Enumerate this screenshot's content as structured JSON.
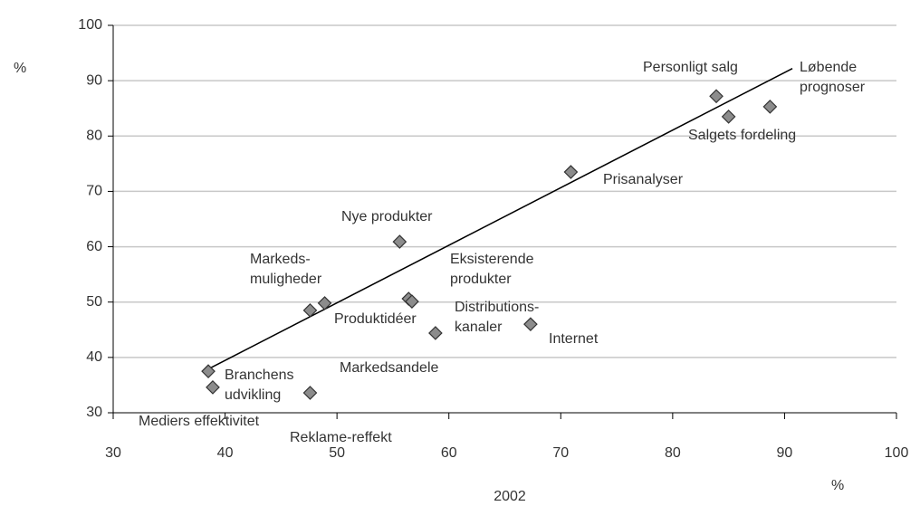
{
  "chart_data": {
    "type": "scatter",
    "x_label": "2002",
    "x_unit": "%",
    "y_unit": "%",
    "points": [
      {
        "label": [
          "Personligt salg"
        ],
        "x": 83.9,
        "y": 87.2
      },
      {
        "label": [
          "Løbende",
          "prognoser"
        ],
        "x": 88.7,
        "y": 85.3
      },
      {
        "label": [
          "Salgets fordeling"
        ],
        "x": 85.0,
        "y": 83.5
      },
      {
        "label": [
          "Prisanalyser"
        ],
        "x": 70.9,
        "y": 73.5
      },
      {
        "label": [
          "Nye produkter"
        ],
        "x": 55.6,
        "y": 60.9
      },
      {
        "label": [
          "Markeds-",
          "muligheder"
        ],
        "x": 48.9,
        "y": 49.8
      },
      {
        "label": [
          "Produktidéer"
        ],
        "x": 56.4,
        "y": 50.6
      },
      {
        "label": [
          "Eksisterende",
          "produkter"
        ],
        "x": 56.7,
        "y": 50.1
      },
      {
        "label": [
          "Distributions-",
          "kanaler"
        ],
        "x": 58.8,
        "y": 44.4
      },
      {
        "label": [
          "Internet"
        ],
        "x": 67.3,
        "y": 46.0
      },
      {
        "label": [
          "Markedsandele"
        ],
        "x": 47.6,
        "y": 48.5
      },
      {
        "label": [
          "Reklame-reffekt"
        ],
        "x": 47.6,
        "y": 33.6
      },
      {
        "label": [
          "Mediers effektivitet"
        ],
        "x": 38.5,
        "y": 37.5
      },
      {
        "label": [
          "Branchens",
          "udvikling"
        ],
        "x": 38.9,
        "y": 34.6
      }
    ],
    "color": "#8c8c8c",
    "trendline": {
      "x": [
        38.6,
        90.7
      ],
      "y": [
        38,
        92.2
      ]
    },
    "xlim": [
      30,
      100
    ],
    "xticks": [
      30,
      40,
      50,
      60,
      70,
      80,
      90,
      100
    ],
    "ylim": [
      30,
      100
    ],
    "yticks": [
      30,
      40,
      50,
      60,
      70,
      80,
      90,
      100
    ],
    "grid": true
  }
}
